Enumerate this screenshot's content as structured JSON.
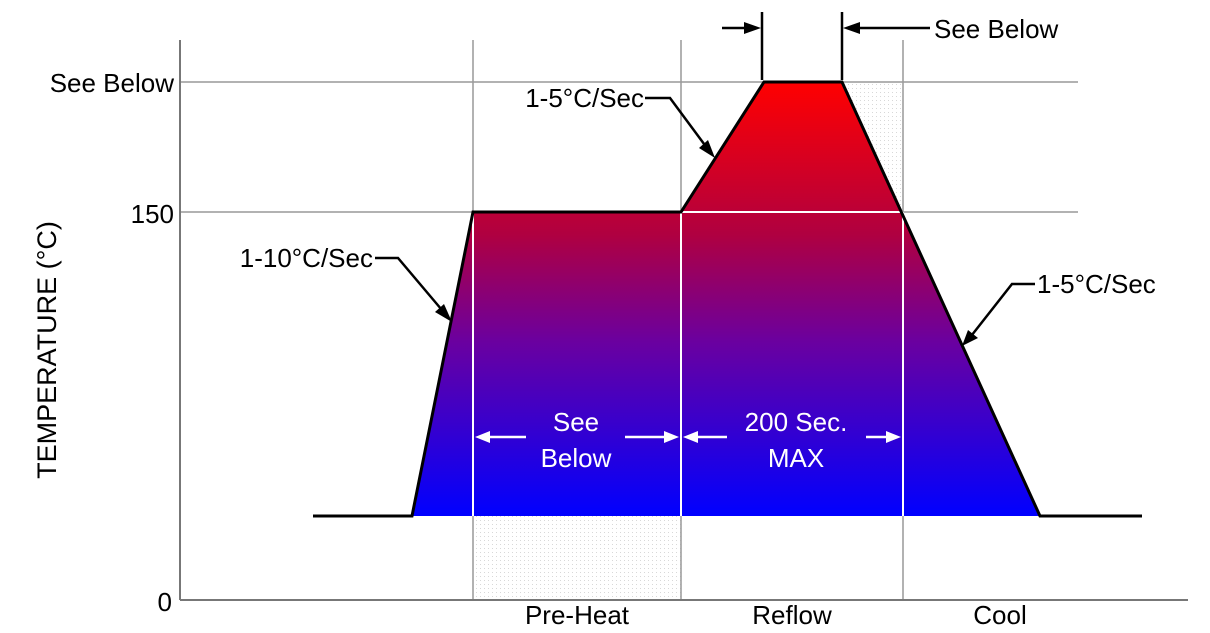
{
  "chart_data": {
    "type": "diagram",
    "ylabel": "TEMPERATURE (°C)",
    "y_ticks": [
      "See Below",
      "150",
      "0"
    ],
    "stage_labels": [
      "Pre-Heat",
      "Reflow",
      "Cool"
    ],
    "ramp_rates": {
      "preheat_ramp": "1-10°C/Sec",
      "reflow_ramp": "1-5°C/Sec",
      "cool_ramp": "1-5°C/Sec"
    },
    "peak_time_label": "See Below",
    "preheat_time_label": [
      "See",
      "Below"
    ],
    "reflow_time_label": [
      "200 Sec.",
      "MAX"
    ],
    "colors": {
      "top": "#ff0000",
      "bottom": "#0000ff"
    }
  }
}
